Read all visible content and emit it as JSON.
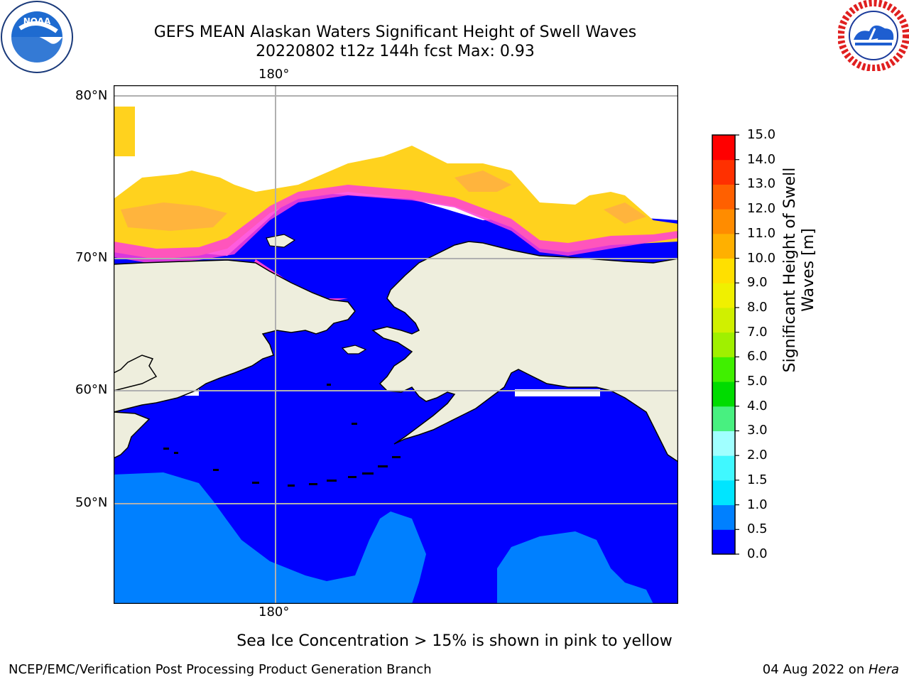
{
  "header": {
    "title_line1": "GEFS MEAN Alaskan Waters Significant Height of Swell Waves",
    "title_line2": "20220802 t12z 144h fcst   Max: 0.93"
  },
  "logos": {
    "left": {
      "name": "NOAA",
      "ring_text": "NATIONAL OCEANIC AND ATMOSPHERIC ADMINISTRATION · U.S. DEPARTMENT OF COMMERCE"
    },
    "right": {
      "ring_text": "NATIONAL WEATHER SERVICE"
    }
  },
  "map": {
    "lon_label_top": "180°",
    "lon_label_bottom": "180°",
    "lat_labels": [
      "80°N",
      "70°N",
      "60°N",
      "50°N"
    ],
    "colors": {
      "ocean": "#0000ff",
      "ocean_light": "#0080ff",
      "land": "#eeeedd",
      "ice_yellow": "#ffd21e",
      "ice_orange": "#ffb040",
      "ice_pink": "#ff40d8",
      "grid": "#b0b0b0"
    }
  },
  "colorbar": {
    "label": "Significant Height of Swell Waves [m]",
    "ticks": [
      "0.0",
      "0.5",
      "1.0",
      "1.5",
      "2.0",
      "3.0",
      "4.0",
      "5.0",
      "6.0",
      "7.0",
      "8.0",
      "9.0",
      "10.0",
      "11.0",
      "12.0",
      "13.0",
      "14.0",
      "15.0"
    ],
    "colors": [
      "#0000ff",
      "#0080ff",
      "#00e5ff",
      "#40f8ff",
      "#a0ffff",
      "#48f080",
      "#00dc00",
      "#40f000",
      "#a0f000",
      "#d0f000",
      "#f0f000",
      "#ffe000",
      "#ffb000",
      "#ff8c00",
      "#ff6000",
      "#ff3000",
      "#ff0000"
    ]
  },
  "footer": {
    "note": "Sea Ice Concentration > 15% is shown in pink to yellow",
    "left": "NCEP/EMC/Verification Post Processing Product Generation Branch",
    "date": "04 Aug 2022 on ",
    "machine": "Hera"
  }
}
